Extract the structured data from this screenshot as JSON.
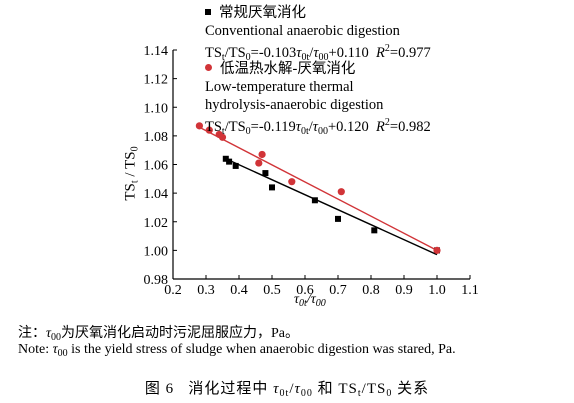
{
  "chart_data": {
    "type": "scatter",
    "xlim": [
      0.2,
      1.1
    ],
    "ylim": [
      0.98,
      1.14
    ],
    "x_ticks": [
      "0.2",
      "0.3",
      "0.4",
      "0.5",
      "0.6",
      "0.7",
      "0.8",
      "0.9",
      "1.0",
      "1.1"
    ],
    "y_ticks": [
      "0.98",
      "1.00",
      "1.02",
      "1.04",
      "1.06",
      "1.08",
      "1.10",
      "1.12",
      "1.14"
    ],
    "ylabel": {
      "main": "TS",
      "sub1": "t",
      "slash": " / ",
      "main2": "TS",
      "sub2": "0"
    },
    "xlabel": {
      "main": "τ",
      "sub1": "0t",
      "slash": "/",
      "main2": "τ",
      "sub2": "00"
    },
    "grid": false,
    "legend_position": "top",
    "series": [
      {
        "name_cn": "常规厌氧消化",
        "name_en": "Conventional anaerobic digestion",
        "fit_equation": "TS_t/TS_0=-0.103τ_0t/τ_00+0.110  R²=0.977",
        "fit_text": {
          "lhs": "TS",
          "lhs_sub": "t",
          "lhs_mid": "/TS",
          "lhs_sub2": "0",
          "rhs_a": "=-0.103",
          "tau1": "τ",
          "tau1_sub": "0t",
          "slash": "/",
          "tau2": "τ",
          "tau2_sub": "00",
          "rhs_b": "+0.110",
          "r2_label": "R",
          "r2_sup": "2",
          "r2_value": "=0.977"
        },
        "color": "#000000",
        "marker": "square",
        "x": [
          0.36,
          0.37,
          0.39,
          0.48,
          0.5,
          0.63,
          0.7,
          0.81,
          1.0
        ],
        "y": [
          1.064,
          1.062,
          1.059,
          1.054,
          1.044,
          1.035,
          1.022,
          1.014,
          1.0
        ],
        "line": {
          "x": [
            0.36,
            1.0
          ],
          "y": [
            1.064,
            0.997
          ]
        }
      },
      {
        "name_cn": "低温热水解-厌氧消化",
        "name_en_line1": "Low-temperature thermal",
        "name_en_line2": "hydrolysis-anaerobic digestion",
        "fit_equation": "TS_t/TS_0=-0.119τ_0t/τ_00+0.120  R²=0.982",
        "fit_text": {
          "lhs": "TS",
          "lhs_sub": "t",
          "lhs_mid": "/TS",
          "lhs_sub2": "0",
          "rhs_a": "=-0.119",
          "tau1": "τ",
          "tau1_sub": "0t",
          "slash": "/",
          "tau2": "τ",
          "tau2_sub": "00",
          "rhs_b": "+0.120",
          "r2_label": "R",
          "r2_sup": "2",
          "r2_value": "=0.982"
        },
        "color": "#d13438",
        "marker": "circle",
        "x": [
          0.28,
          0.31,
          0.34,
          0.35,
          0.46,
          0.47,
          0.56,
          0.71,
          1.0
        ],
        "y": [
          1.087,
          1.084,
          1.081,
          1.079,
          1.061,
          1.067,
          1.048,
          1.041,
          1.0
        ],
        "line": {
          "x": [
            0.28,
            1.0
          ],
          "y": [
            1.086,
            1.0
          ]
        }
      }
    ]
  },
  "note": {
    "cn_prefix": "注：",
    "cn_tau": "τ",
    "cn_tau_sub": "00",
    "cn_text": "为厌氧消化启动时污泥屈服应力，Pa。",
    "en_prefix": "Note: ",
    "en_tau": "τ",
    "en_tau_sub": "00",
    "en_text": " is the yield stress of sludge when anaerobic digestion was stared, Pa."
  },
  "caption": {
    "fig_label": "图 6",
    "text_a": "消化过程中 ",
    "tau1": "τ",
    "tau1_sub": "0t",
    "slash": "/",
    "tau2": "τ",
    "tau2_sub": "00",
    "text_b": " 和 TS",
    "ts_sub1": "t",
    "ts_mid": "/TS",
    "ts_sub2": "0",
    "text_c": " 关系"
  },
  "colors": {
    "axis": "#000000",
    "series_a": "#000000",
    "series_b": "#d13438"
  }
}
